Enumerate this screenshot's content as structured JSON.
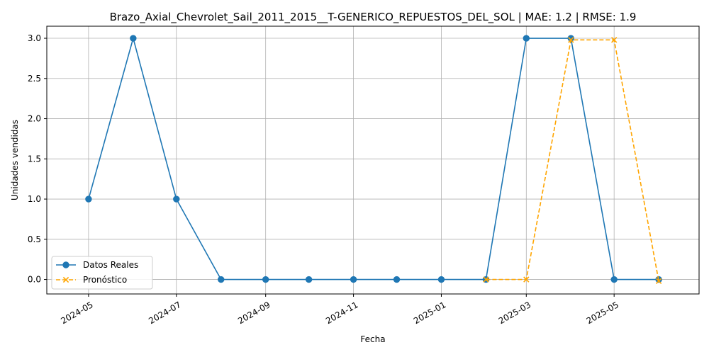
{
  "chart_data": {
    "type": "line",
    "title": "Brazo_Axial_Chevrolet_Sail_2011_2015__T-GENERICO_REPUESTOS_DEL_SOL | MAE: 1.2 | RMSE: 1.9",
    "xlabel": "Fecha",
    "ylabel": "Unidades vendidas",
    "x_ticks": [
      "2024-05",
      "2024-07",
      "2024-09",
      "2024-11",
      "2025-01",
      "2025-03",
      "2025-05"
    ],
    "y_ticks": [
      "0.0",
      "0.5",
      "1.0",
      "1.5",
      "2.0",
      "2.5",
      "3.0"
    ],
    "ylim": [
      -0.18,
      3.15
    ],
    "xlim": [
      "2024-04-02",
      "2025-06-29"
    ],
    "grid": true,
    "legend_position": "lower-left",
    "series": [
      {
        "name": "Datos Reales",
        "color": "#1f77b4",
        "marker": "circle",
        "line_style": "solid",
        "points": [
          {
            "x": "2024-05-01",
            "y": 1
          },
          {
            "x": "2024-06-01",
            "y": 3
          },
          {
            "x": "2024-07-01",
            "y": 1
          },
          {
            "x": "2024-08-01",
            "y": 0
          },
          {
            "x": "2024-09-01",
            "y": 0
          },
          {
            "x": "2024-10-01",
            "y": 0
          },
          {
            "x": "2024-11-01",
            "y": 0
          },
          {
            "x": "2024-12-01",
            "y": 0
          },
          {
            "x": "2025-01-01",
            "y": 0
          },
          {
            "x": "2025-02-01",
            "y": 0
          },
          {
            "x": "2025-03-01",
            "y": 3
          },
          {
            "x": "2025-04-01",
            "y": 3
          },
          {
            "x": "2025-05-01",
            "y": 0
          },
          {
            "x": "2025-06-01",
            "y": 0
          }
        ]
      },
      {
        "name": "Pronóstico",
        "color": "#ffa500",
        "marker": "x",
        "line_style": "dashed",
        "points": [
          {
            "x": "2025-02-01",
            "y": 0
          },
          {
            "x": "2025-03-01",
            "y": 0
          },
          {
            "x": "2025-04-01",
            "y": 2.98
          },
          {
            "x": "2025-05-01",
            "y": 2.98
          },
          {
            "x": "2025-06-01",
            "y": -0.02
          }
        ]
      }
    ]
  }
}
